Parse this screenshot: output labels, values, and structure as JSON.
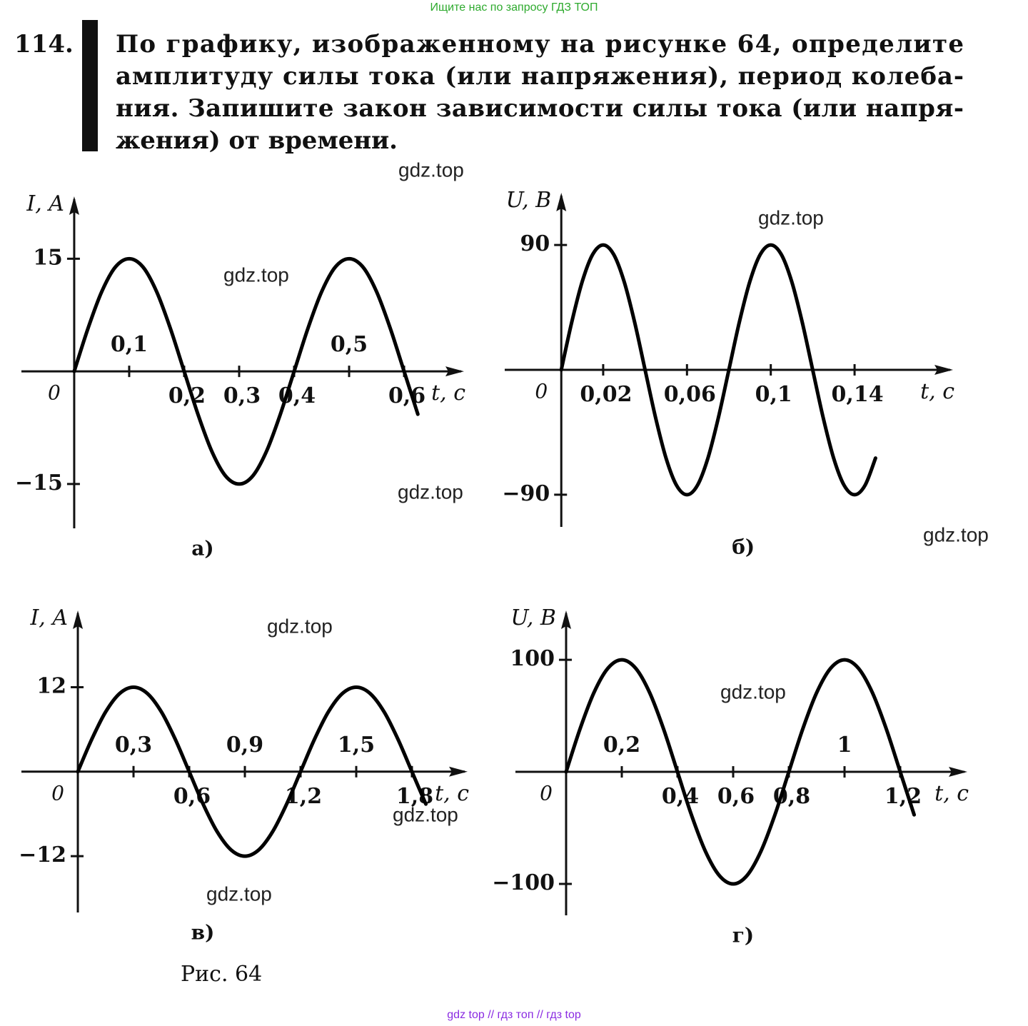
{
  "header_note": "Ищите нас по запросу ГДЗ ТОП",
  "problem": {
    "number": "114.",
    "lines": [
      "По графику, изображенному на рисунке 64, определите",
      "амплитуду силы тока (или напряжения), период колеба-",
      "ния. Запишите закон зависимости силы тока (или напря-",
      "жения) от времени."
    ]
  },
  "figure_caption": "Рис. 64",
  "watermarks": [
    "gdz.top",
    "gdz.top",
    "gdz.top",
    "gdz.top",
    "gdz.top",
    "gdz.top",
    "gdz.top",
    "gdz.top",
    "gdz.top"
  ],
  "footer": "gdz top  //  гдз топ  //  гдз top",
  "chart_data": [
    {
      "type": "line",
      "caption": "а)",
      "xlabel": "t, c",
      "ylabel": "I, A",
      "x": [
        0,
        0.025,
        0.05,
        0.075,
        0.1,
        0.125,
        0.15,
        0.175,
        0.2,
        0.225,
        0.25,
        0.275,
        0.3,
        0.325,
        0.35,
        0.375,
        0.4,
        0.425,
        0.45,
        0.475,
        0.5,
        0.525,
        0.55,
        0.575,
        0.6,
        0.625
      ],
      "series": [
        {
          "color": "#000000",
          "values": [
            0,
            5.7,
            10.6,
            13.9,
            15,
            13.9,
            10.6,
            5.7,
            0,
            -5.7,
            -10.6,
            -13.9,
            -15,
            -13.9,
            -10.6,
            -5.7,
            0,
            5.7,
            10.6,
            13.9,
            15,
            13.9,
            10.6,
            5.7,
            0,
            -5.7
          ]
        }
      ],
      "xlim": [
        -0.096,
        0.709
      ],
      "ylim": [
        -20.9,
        23.3
      ],
      "xticks": [
        0,
        {
          "value": 0.1,
          "label": "0,1"
        },
        {
          "value": 0.2,
          "label": "0,2"
        },
        {
          "value": 0.3,
          "label": "0,3"
        },
        {
          "value": 0.4,
          "label": "0,4"
        },
        {
          "value": 0.5,
          "label": "0,5"
        },
        {
          "value": 0.6,
          "label": "0,6"
        }
      ],
      "yticks": [
        15,
        {
          "value": -15,
          "label": "−15"
        }
      ]
    },
    {
      "type": "line",
      "caption": "б)",
      "xlabel": "t, c",
      "ylabel": "U, B",
      "x": [
        0,
        0.005,
        0.01,
        0.015,
        0.02,
        0.025,
        0.03,
        0.035,
        0.04,
        0.045,
        0.05,
        0.055,
        0.06,
        0.065,
        0.07,
        0.075,
        0.08,
        0.085,
        0.09,
        0.095,
        0.1,
        0.105,
        0.11,
        0.115,
        0.12,
        0.125,
        0.13,
        0.135,
        0.14,
        0.145,
        0.15
      ],
      "series": [
        {
          "color": "#000000",
          "values": [
            0,
            34.4,
            63.6,
            83.2,
            90,
            83.2,
            63.6,
            34.4,
            0,
            -34.4,
            -63.6,
            -83.2,
            -90,
            -83.2,
            -63.6,
            -34.4,
            0,
            34.4,
            63.6,
            83.2,
            90,
            83.2,
            63.6,
            34.4,
            0,
            -34.4,
            -63.6,
            -83.2,
            -90,
            -83.2,
            -63.6
          ]
        }
      ],
      "xlim": [
        -0.027,
        0.187
      ],
      "ylim": [
        -113.2,
        127.6
      ],
      "xticks": [
        0,
        {
          "value": 0.02,
          "label": "0,02"
        },
        {
          "value": 0.06,
          "label": "0,06"
        },
        {
          "value": 0.1,
          "label": "0,1"
        },
        {
          "value": 0.14,
          "label": "0,14"
        }
      ],
      "yticks": [
        90,
        {
          "value": -90,
          "label": "−90"
        }
      ]
    },
    {
      "type": "line",
      "caption": "в)",
      "xlabel": "t, c",
      "ylabel": "I, A",
      "x": [
        0,
        0.075,
        0.15,
        0.225,
        0.3,
        0.375,
        0.45,
        0.525,
        0.6,
        0.675,
        0.75,
        0.825,
        0.9,
        0.975,
        1.05,
        1.125,
        1.2,
        1.275,
        1.35,
        1.425,
        1.5,
        1.575,
        1.65,
        1.725,
        1.8,
        1.875
      ],
      "series": [
        {
          "color": "#000000",
          "values": [
            0,
            4.6,
            8.5,
            11.1,
            12,
            11.1,
            8.5,
            4.6,
            0,
            -4.6,
            -8.5,
            -11.1,
            -12,
            -11.1,
            -8.5,
            -4.6,
            0,
            4.6,
            8.5,
            11.1,
            12,
            11.1,
            8.5,
            4.6,
            0,
            -4.6
          ]
        }
      ],
      "xlim": [
        -0.304,
        2.1
      ],
      "ylim": [
        -20,
        22.9
      ],
      "xticks": [
        0,
        {
          "value": 0.3,
          "label": "0,3"
        },
        {
          "value": 0.6,
          "label": "0,6"
        },
        {
          "value": 0.9,
          "label": "0,9"
        },
        {
          "value": 1.2,
          "label": "1,2"
        },
        {
          "value": 1.5,
          "label": "1,5"
        },
        {
          "value": 1.8,
          "label": "1,8"
        }
      ],
      "yticks": [
        12,
        {
          "value": -12,
          "label": "−12"
        }
      ]
    },
    {
      "type": "line",
      "caption": "г)",
      "xlabel": "t, c",
      "ylabel": "U, B",
      "x": [
        0,
        0.05,
        0.1,
        0.15,
        0.2,
        0.25,
        0.3,
        0.35,
        0.4,
        0.45,
        0.5,
        0.55,
        0.6,
        0.65,
        0.7,
        0.75,
        0.8,
        0.85,
        0.9,
        0.95,
        1,
        1.05,
        1.1,
        1.15,
        1.2,
        1.25
      ],
      "series": [
        {
          "color": "#000000",
          "values": [
            0,
            38.3,
            70.7,
            92.4,
            100,
            92.4,
            70.7,
            38.3,
            0,
            -38.3,
            -70.7,
            -92.4,
            -100,
            -92.4,
            -70.7,
            -38.3,
            0,
            38.3,
            70.7,
            92.4,
            100,
            92.4,
            70.7,
            38.3,
            0,
            -38.3
          ]
        }
      ],
      "xlim": [
        -0.182,
        1.441
      ],
      "ylim": [
        -128,
        144
      ],
      "xticks": [
        0,
        {
          "value": 0.2,
          "label": "0,2"
        },
        {
          "value": 0.4,
          "label": "0,4"
        },
        {
          "value": 0.6,
          "label": "0,6"
        },
        {
          "value": 0.8,
          "label": "0,8"
        },
        1,
        {
          "value": 1.2,
          "label": "1,2"
        }
      ],
      "yticks": [
        100,
        {
          "value": -100,
          "label": "−100"
        }
      ]
    }
  ]
}
